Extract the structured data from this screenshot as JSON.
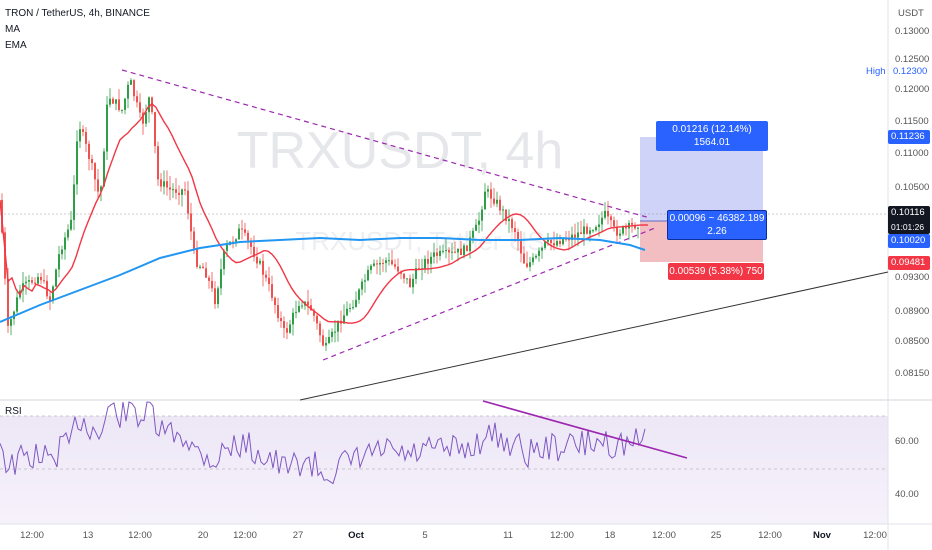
{
  "header": {
    "title": "TRON / TetherUS, 4h, BINANCE",
    "indicator_ma": "MA",
    "indicator_ema": "EMA"
  },
  "watermark": {
    "symbol": "TRXUSDT, 4h"
  },
  "price_axis": {
    "currency": "USDT",
    "ticks": [
      "0.13000",
      "0.12500",
      "0.12000",
      "0.11500",
      "0.11000",
      "0.10500",
      "0.09300",
      "0.08900",
      "0.08500",
      "0.08150"
    ],
    "high_label": "High",
    "high_value": "0.12300"
  },
  "price_tags": {
    "target": "0.11236",
    "current": "0.10116",
    "countdown": "01:01:26",
    "entry": "0.10020",
    "stop": "0.09481"
  },
  "position_tool": {
    "target_label": "0.01216 (12.14%) 1564.01",
    "entry_label_line1": "0.00096 ~ 46382.189",
    "entry_label_line2": "2.26",
    "stop_label": "0.00539 (5.38%) 750"
  },
  "rsi": {
    "label": "RSI",
    "ticks": [
      "60.00",
      "40.00"
    ]
  },
  "time_axis": {
    "labels": [
      "12:00",
      "13",
      "12:00",
      "20",
      "12:00",
      "27",
      "Oct",
      "5",
      "11",
      "12:00",
      "18",
      "12:00",
      "25",
      "12:00",
      "Nov",
      "12:00"
    ]
  },
  "colors": {
    "bull": "#26a69a",
    "bear": "#ef5350",
    "bull_candle": "#2e9e47",
    "ma": "#f23645",
    "ema": "#2196f3",
    "trendline": "#9c27b0",
    "rsi_line": "#7e57c2",
    "target_zone": "#c4c8f5",
    "stop_zone": "#f1b3b7",
    "target_label_bg": "#2962ff",
    "stop_label_bg": "#f23645"
  }
}
